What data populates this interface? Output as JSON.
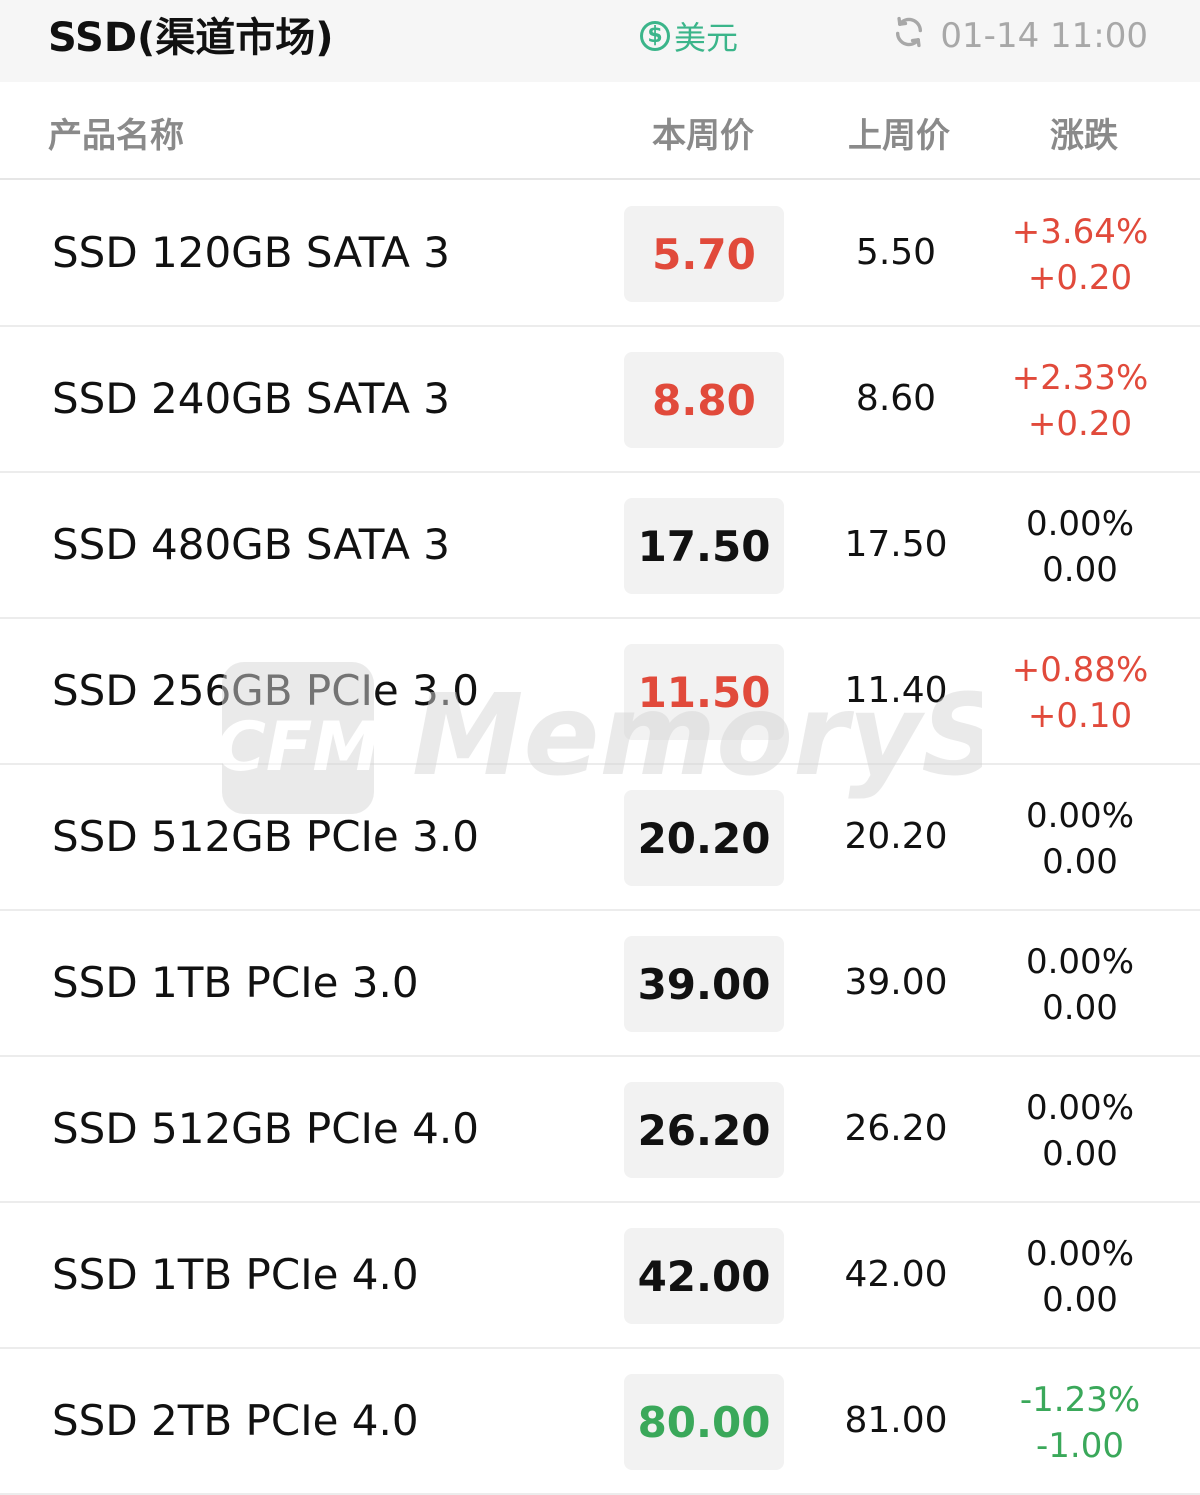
{
  "header": {
    "title": "SSD(渠道市场)",
    "currency_symbol": "$",
    "currency_label": "美元",
    "refresh_icon": "refresh-icon",
    "update_time": "01-14 11:00"
  },
  "columns": {
    "name": "产品名称",
    "current": "本周价",
    "previous": "上周价",
    "change": "涨跌"
  },
  "rows": [
    {
      "name": "SSD 120GB SATA 3",
      "current": "5.70",
      "previous": "5.50",
      "change_pct": "+3.64%",
      "change_abs": "+0.20",
      "trend": "up"
    },
    {
      "name": "SSD 240GB SATA 3",
      "current": "8.80",
      "previous": "8.60",
      "change_pct": "+2.33%",
      "change_abs": "+0.20",
      "trend": "up"
    },
    {
      "name": "SSD 480GB SATA 3",
      "current": "17.50",
      "previous": "17.50",
      "change_pct": "0.00%",
      "change_abs": "0.00",
      "trend": "flat"
    },
    {
      "name": "SSD 256GB PCIe 3.0",
      "current": "11.50",
      "previous": "11.40",
      "change_pct": "+0.88%",
      "change_abs": "+0.10",
      "trend": "up"
    },
    {
      "name": "SSD 512GB PCIe 3.0",
      "current": "20.20",
      "previous": "20.20",
      "change_pct": "0.00%",
      "change_abs": "0.00",
      "trend": "flat"
    },
    {
      "name": "SSD 1TB PCIe 3.0",
      "current": "39.00",
      "previous": "39.00",
      "change_pct": "0.00%",
      "change_abs": "0.00",
      "trend": "flat"
    },
    {
      "name": "SSD 512GB PCIe 4.0",
      "current": "26.20",
      "previous": "26.20",
      "change_pct": "0.00%",
      "change_abs": "0.00",
      "trend": "flat"
    },
    {
      "name": "SSD 1TB PCIe 4.0",
      "current": "42.00",
      "previous": "42.00",
      "change_pct": "0.00%",
      "change_abs": "0.00",
      "trend": "flat"
    },
    {
      "name": "SSD 2TB PCIe 4.0",
      "current": "80.00",
      "previous": "81.00",
      "change_pct": "-1.23%",
      "change_abs": "-1.00",
      "trend": "down"
    }
  ],
  "colors": {
    "up": "#e14a3b",
    "down": "#3aa85a",
    "flat": "#111111",
    "accent_green": "#3bb58a"
  },
  "watermark": {
    "logo_text": "CFM",
    "brand_text": "MemoryS"
  }
}
